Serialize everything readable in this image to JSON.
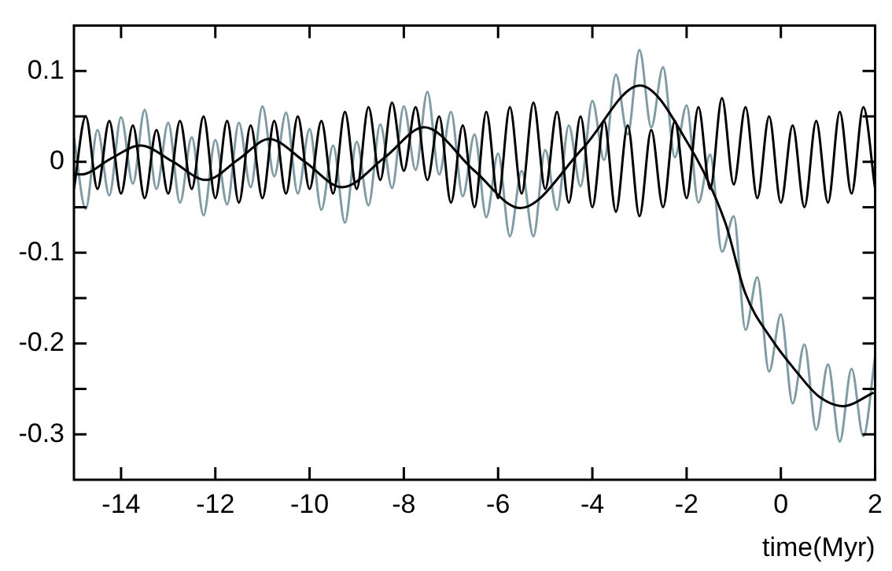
{
  "chart_data": {
    "type": "line",
    "xlabel": "time(Myr)",
    "marker": "none",
    "grid": false,
    "xlim": [
      -15,
      2
    ],
    "xticks": [
      -14,
      -12,
      -10,
      -8,
      -6,
      -4,
      -2,
      0,
      2
    ],
    "ylim": [
      -0.35,
      0.15
    ],
    "yticks": [
      0.1,
      {
        "value": 0.05,
        "label": null
      },
      0,
      {
        "value": -0.05,
        "label": null
      },
      -0.1,
      {
        "value": -0.15,
        "label": null
      },
      -0.2,
      {
        "value": -0.25,
        "label": null
      },
      -0.3
    ],
    "x": [
      -15,
      -14.75,
      -14.5,
      -14.25,
      -14,
      -13.75,
      -13.5,
      -13.25,
      -13,
      -12.75,
      -12.5,
      -12.25,
      -12,
      -11.75,
      -11.5,
      -11.25,
      -11,
      -10.75,
      -10.5,
      -10.25,
      -10,
      -9.75,
      -9.5,
      -9.25,
      -9,
      -8.75,
      -8.5,
      -8.25,
      -8,
      -7.75,
      -7.5,
      -7.25,
      -7,
      -6.75,
      -6.5,
      -6.25,
      -6,
      -5.75,
      -5.5,
      -5.25,
      -5,
      -4.75,
      -4.5,
      -4.25,
      -4,
      -3.75,
      -3.5,
      -3.25,
      -3,
      -2.75,
      -2.5,
      -2.25,
      -2,
      -1.75,
      -1.5,
      -1.25,
      -1,
      -0.75,
      -0.5,
      -0.25,
      0,
      0.25,
      0.5,
      0.75,
      1,
      1.25,
      1.5,
      1.75,
      2
    ],
    "series": [
      {
        "color": "#7f9ba3",
        "values": [
          0.027,
          -0.052,
          0.035,
          -0.037,
          0.049,
          -0.024,
          0.057,
          -0.03,
          0.043,
          -0.045,
          0.027,
          -0.059,
          0.024,
          -0.047,
          0.043,
          -0.028,
          0.061,
          -0.016,
          0.054,
          -0.035,
          0.036,
          -0.053,
          0.018,
          -0.067,
          0.022,
          -0.048,
          0.041,
          -0.029,
          0.061,
          -0.009,
          0.077,
          -0.014,
          0.055,
          -0.038,
          0.03,
          -0.061,
          0.009,
          -0.082,
          -0.01,
          -0.082,
          0.013,
          -0.053,
          0.04,
          -0.027,
          0.067,
          0.002,
          0.096,
          0.03,
          0.123,
          0.038,
          0.104,
          0.005,
          0.062,
          -0.045,
          0.008,
          -0.099,
          -0.06,
          -0.185,
          -0.127,
          -0.231,
          -0.168,
          -0.266,
          -0.201,
          -0.295,
          -0.223,
          -0.308,
          -0.228,
          -0.302,
          -0.214
        ]
      },
      {
        "color": "#000000",
        "values": [
          -0.03,
          0.05,
          -0.03,
          0.045,
          -0.035,
          0.04,
          -0.04,
          0.035,
          -0.035,
          0.045,
          -0.03,
          0.05,
          -0.04,
          0.045,
          -0.045,
          0.04,
          -0.04,
          0.045,
          -0.035,
          0.05,
          -0.03,
          0.045,
          -0.035,
          0.055,
          -0.03,
          0.06,
          -0.02,
          0.065,
          -0.01,
          0.06,
          -0.02,
          0.05,
          -0.045,
          0.04,
          -0.05,
          0.055,
          -0.04,
          0.06,
          -0.035,
          0.065,
          -0.03,
          0.055,
          -0.045,
          0.05,
          -0.05,
          0.045,
          -0.055,
          0.04,
          -0.06,
          0.035,
          -0.05,
          0.045,
          -0.04,
          0.06,
          -0.03,
          0.07,
          -0.025,
          0.06,
          -0.04,
          0.05,
          -0.045,
          0.04,
          -0.05,
          0.045,
          -0.045,
          0.055,
          -0.035,
          0.06,
          -0.03
        ]
      },
      {
        "color": "#000000",
        "x": [
          -15,
          -14.85,
          -14.2,
          -13.59,
          -12.9,
          -12.2,
          -11.5,
          -10.86,
          -10.1,
          -9.31,
          -8.4,
          -7.57,
          -6.5,
          -5.53,
          -4.2,
          -2.99,
          -1.97,
          -1.18,
          -0.76,
          -0.2,
          0.33,
          0.8,
          1.32,
          1.97
        ],
        "values": [
          -0.013,
          -0.014,
          0.004,
          0.018,
          0.0,
          -0.02,
          0.003,
          0.025,
          0.0,
          -0.028,
          0.005,
          0.038,
          -0.01,
          -0.051,
          0.015,
          0.084,
          0.02,
          -0.067,
          -0.144,
          -0.195,
          -0.231,
          -0.258,
          -0.269,
          -0.254
        ]
      }
    ]
  }
}
